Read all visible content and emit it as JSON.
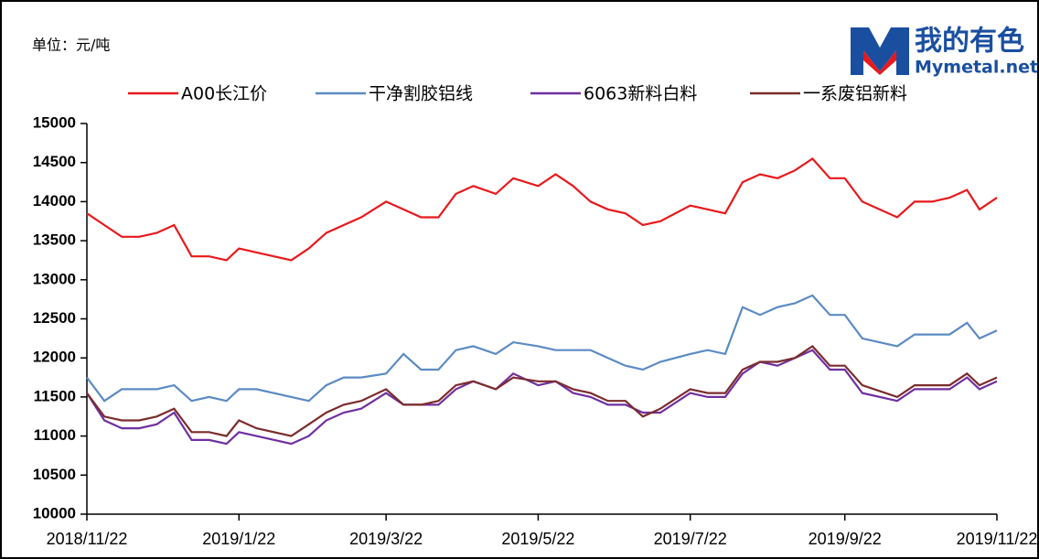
{
  "chart_data": {
    "type": "line",
    "unit": "单位：元/吨",
    "logo": {
      "name": "我的有色",
      "site": "Mymetal.net"
    },
    "x": [
      "2018/11/22",
      "2018/11/29",
      "2018/12/6",
      "2018/12/13",
      "2018/12/20",
      "2018/12/27",
      "2019/1/3",
      "2019/1/10",
      "2019/1/17",
      "2019/1/22",
      "2019/1/29",
      "2019/2/12",
      "2019/2/19",
      "2019/2/26",
      "2019/3/5",
      "2019/3/12",
      "2019/3/22",
      "2019/3/29",
      "2019/4/5",
      "2019/4/12",
      "2019/4/19",
      "2019/4/26",
      "2019/5/5",
      "2019/5/12",
      "2019/5/22",
      "2019/5/29",
      "2019/6/5",
      "2019/6/12",
      "2019/6/19",
      "2019/6/26",
      "2019/7/3",
      "2019/7/10",
      "2019/7/22",
      "2019/7/29",
      "2019/8/5",
      "2019/8/12",
      "2019/8/19",
      "2019/8/26",
      "2019/9/2",
      "2019/9/9",
      "2019/9/16",
      "2019/9/22",
      "2019/9/29",
      "2019/10/13",
      "2019/10/20",
      "2019/10/27",
      "2019/11/3",
      "2019/11/10",
      "2019/11/15",
      "2019/11/22"
    ],
    "series": [
      {
        "name": "A00长江价",
        "color": "#e8191c",
        "values": [
          13850,
          13700,
          13550,
          13550,
          13600,
          13700,
          13300,
          13300,
          13250,
          13400,
          13350,
          13250,
          13400,
          13600,
          13700,
          13800,
          14000,
          13900,
          13800,
          13800,
          14100,
          14200,
          14100,
          14300,
          14200,
          14350,
          14200,
          14000,
          13900,
          13850,
          13700,
          13750,
          13950,
          13900,
          13850,
          14250,
          14350,
          14300,
          14400,
          14550,
          14300,
          14300,
          14000,
          13800,
          14000,
          14000,
          14050,
          14150,
          13900,
          14050
        ]
      },
      {
        "name": "干净割胶铝线",
        "color": "#5b8bc2",
        "values": [
          11750,
          11450,
          11600,
          11600,
          11600,
          11650,
          11450,
          11500,
          11450,
          11600,
          11600,
          11500,
          11450,
          11650,
          11750,
          11750,
          11800,
          12050,
          11850,
          11850,
          12100,
          12150,
          12050,
          12200,
          12150,
          12100,
          12100,
          12100,
          12000,
          11900,
          11850,
          11950,
          12050,
          12100,
          12050,
          12650,
          12550,
          12650,
          12700,
          12800,
          12550,
          12550,
          12250,
          12150,
          12300,
          12300,
          12300,
          12450,
          12250,
          12350
        ]
      },
      {
        "name": "6063新料白料",
        "color": "#7030a0",
        "values": [
          11550,
          11200,
          11100,
          11100,
          11150,
          11300,
          10950,
          10950,
          10900,
          11050,
          11000,
          10900,
          11000,
          11200,
          11300,
          11350,
          11550,
          11400,
          11400,
          11400,
          11600,
          11700,
          11600,
          11800,
          11650,
          11700,
          11550,
          11500,
          11400,
          11400,
          11300,
          11300,
          11550,
          11500,
          11500,
          11800,
          11950,
          11900,
          12000,
          12100,
          11850,
          11850,
          11550,
          11450,
          11600,
          11600,
          11600,
          11750,
          11600,
          11700
        ]
      },
      {
        "name": "一系废铝新料",
        "color": "#7b2c2c",
        "values": [
          11550,
          11250,
          11200,
          11200,
          11250,
          11350,
          11050,
          11050,
          11000,
          11200,
          11100,
          11000,
          11150,
          11300,
          11400,
          11450,
          11600,
          11400,
          11400,
          11450,
          11650,
          11700,
          11600,
          11750,
          11700,
          11700,
          11600,
          11550,
          11450,
          11450,
          11250,
          11350,
          11600,
          11550,
          11550,
          11850,
          11950,
          11950,
          12000,
          12150,
          11900,
          11900,
          11650,
          11500,
          11650,
          11650,
          11650,
          11800,
          11650,
          11750
        ]
      }
    ],
    "xlim": [
      "2018/11/22",
      "2019/11/22"
    ],
    "xticks": [
      "2018/11/22",
      "2019/1/22",
      "2019/3/22",
      "2019/5/22",
      "2019/7/22",
      "2019/9/22",
      "2019/11/22"
    ],
    "ylim": [
      10000,
      15000
    ],
    "yticks": [
      10000,
      10500,
      11000,
      11500,
      12000,
      12500,
      13000,
      13500,
      14000,
      14500,
      15000
    ]
  }
}
